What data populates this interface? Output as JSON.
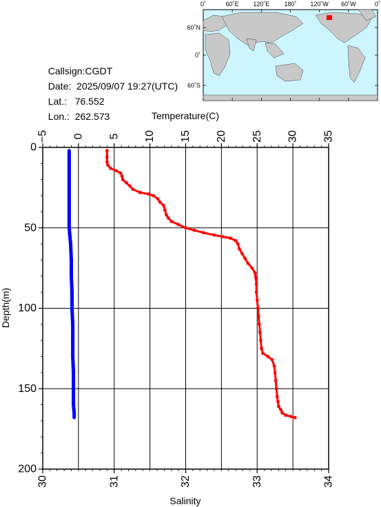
{
  "meta": {
    "callsign_label": "Callsign:",
    "callsign": "CGDT",
    "date_label": "Date:",
    "date": "2025/09/07 19:27(UTC)",
    "lat_label": "Lat.:",
    "lat": "76.552",
    "lon_label": "Lon.:",
    "lon": "262.573"
  },
  "map": {
    "top_labels": [
      "0˚",
      "60˚E",
      "120˚E",
      "180˚",
      "120˚W",
      "60˚W",
      "0˚"
    ],
    "left_labels": [
      "60˚N",
      "0˚",
      "60˚S"
    ],
    "ocean_color": "#ccf5ff",
    "land_color": "#c8c8c8",
    "marker_color": "#ff0000"
  },
  "chart_data": {
    "type": "scatter",
    "top_axis_label": "Temperature(C)",
    "bottom_axis_label": "Salinity",
    "left_axis_label": "Depth(m)",
    "temperature_range": [
      -5,
      35
    ],
    "salinity_range": [
      30,
      34
    ],
    "depth_range": [
      0,
      200
    ],
    "depth_inverted": true,
    "temperature_ticks": [
      "−5",
      "0",
      "5",
      "10",
      "15",
      "20",
      "25",
      "30",
      "35"
    ],
    "salinity_ticks": [
      "30",
      "31",
      "32",
      "33",
      "34"
    ],
    "depth_ticks": [
      "0",
      "50",
      "100",
      "150",
      "200"
    ],
    "grid": true,
    "series": [
      {
        "variable": "temperature",
        "color": "#ff0000",
        "points": [
          [
            4.0,
            2
          ],
          [
            4.0,
            6
          ],
          [
            4.0,
            9
          ],
          [
            4.1,
            11
          ],
          [
            4.5,
            13
          ],
          [
            5.3,
            14.5
          ],
          [
            5.9,
            16
          ],
          [
            6.1,
            18
          ],
          [
            6.2,
            20
          ],
          [
            6.7,
            22
          ],
          [
            7.2,
            24
          ],
          [
            7.6,
            26
          ],
          [
            8.6,
            28
          ],
          [
            9.8,
            29
          ],
          [
            10.5,
            30
          ],
          [
            11.1,
            32
          ],
          [
            11.4,
            34
          ],
          [
            11.9,
            36
          ],
          [
            12.1,
            39
          ],
          [
            12.3,
            42
          ],
          [
            12.6,
            44
          ],
          [
            13.0,
            46
          ],
          [
            14.0,
            48
          ],
          [
            15.0,
            50
          ],
          [
            16.2,
            51.5
          ],
          [
            17.5,
            53
          ],
          [
            19.0,
            54.5
          ],
          [
            20.2,
            55.5
          ],
          [
            21.3,
            56.5
          ],
          [
            22.0,
            58
          ],
          [
            22.3,
            60
          ],
          [
            22.5,
            63
          ],
          [
            22.9,
            66
          ],
          [
            23.3,
            69
          ],
          [
            23.7,
            72
          ],
          [
            24.3,
            75
          ],
          [
            24.7,
            78
          ],
          [
            24.8,
            81
          ],
          [
            24.9,
            85
          ],
          [
            24.9,
            90
          ],
          [
            25.0,
            95
          ],
          [
            25.1,
            100
          ],
          [
            25.2,
            105
          ],
          [
            25.3,
            110
          ],
          [
            25.4,
            115
          ],
          [
            25.5,
            120
          ],
          [
            25.6,
            125
          ],
          [
            25.8,
            128
          ],
          [
            26.5,
            130
          ],
          [
            27.1,
            132
          ],
          [
            27.4,
            136
          ],
          [
            27.5,
            140
          ],
          [
            27.6,
            145
          ],
          [
            27.7,
            150
          ],
          [
            27.8,
            155
          ],
          [
            27.9,
            158
          ],
          [
            28.0,
            161
          ],
          [
            28.3,
            163
          ],
          [
            28.5,
            165
          ],
          [
            29.0,
            166.5
          ],
          [
            29.7,
            167.3
          ],
          [
            30.3,
            168
          ]
        ]
      },
      {
        "variable": "salinity",
        "color": "#0000ff",
        "points": [
          [
            30.37,
            2
          ],
          [
            30.37,
            10
          ],
          [
            30.37,
            20
          ],
          [
            30.37,
            30
          ],
          [
            30.37,
            40
          ],
          [
            30.37,
            50
          ],
          [
            30.38,
            55
          ],
          [
            30.39,
            60
          ],
          [
            30.4,
            70
          ],
          [
            30.4,
            80
          ],
          [
            30.41,
            90
          ],
          [
            30.41,
            100
          ],
          [
            30.42,
            110
          ],
          [
            30.42,
            120
          ],
          [
            30.42,
            130
          ],
          [
            30.43,
            140
          ],
          [
            30.43,
            150
          ],
          [
            30.43,
            160
          ],
          [
            30.44,
            165
          ],
          [
            30.44,
            168
          ]
        ]
      }
    ]
  }
}
